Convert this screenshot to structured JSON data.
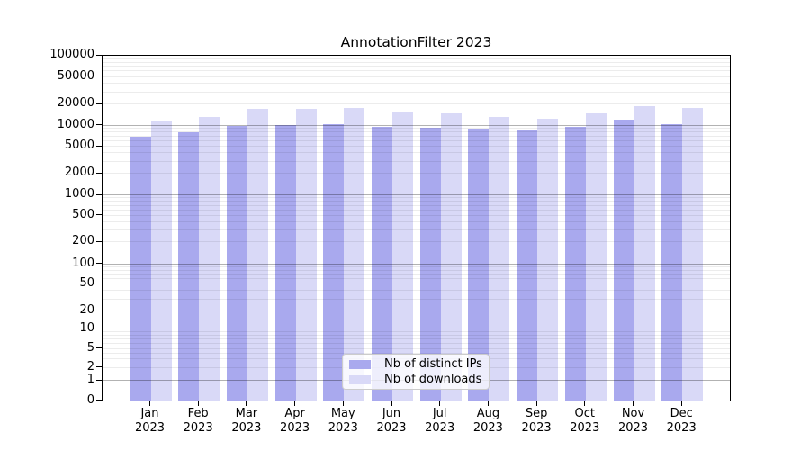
{
  "chart_data": {
    "type": "bar",
    "title": "AnnotationFilter 2023",
    "categories": [
      "Jan",
      "Feb",
      "Mar",
      "Apr",
      "May",
      "Jun",
      "Jul",
      "Aug",
      "Sep",
      "Oct",
      "Nov",
      "Dec"
    ],
    "category_year": "2023",
    "series": [
      {
        "name": "Nb of distinct IPs",
        "color": "#a9a9ee",
        "values": [
          6700,
          7700,
          9500,
          9800,
          10100,
          9300,
          8900,
          8700,
          8300,
          9400,
          11700,
          10200
        ]
      },
      {
        "name": "Nb of downloads",
        "color": "#d9d9f7",
        "values": [
          11500,
          12700,
          16700,
          16600,
          17100,
          15300,
          14500,
          12900,
          12000,
          14300,
          18100,
          17200
        ]
      }
    ],
    "ylim": [
      0,
      100000
    ],
    "yticks": [
      0,
      1,
      2,
      5,
      10,
      20,
      50,
      100,
      200,
      500,
      1000,
      2000,
      5000,
      10000,
      20000,
      50000,
      100000
    ],
    "yscale": "log 1-2-5 ticks with 0 baseline",
    "grid": "horizontal; faint minor lines at 2-9 multiples, darker lines at powers of 10, drawn over bars",
    "legend_position": "bottom-center-inside",
    "background": "#ffffff",
    "axis_color": "#000000",
    "major_grid_color": "rgba(0,0,0,0.30)",
    "minor_grid_color": "rgba(0,0,0,0.075)"
  }
}
